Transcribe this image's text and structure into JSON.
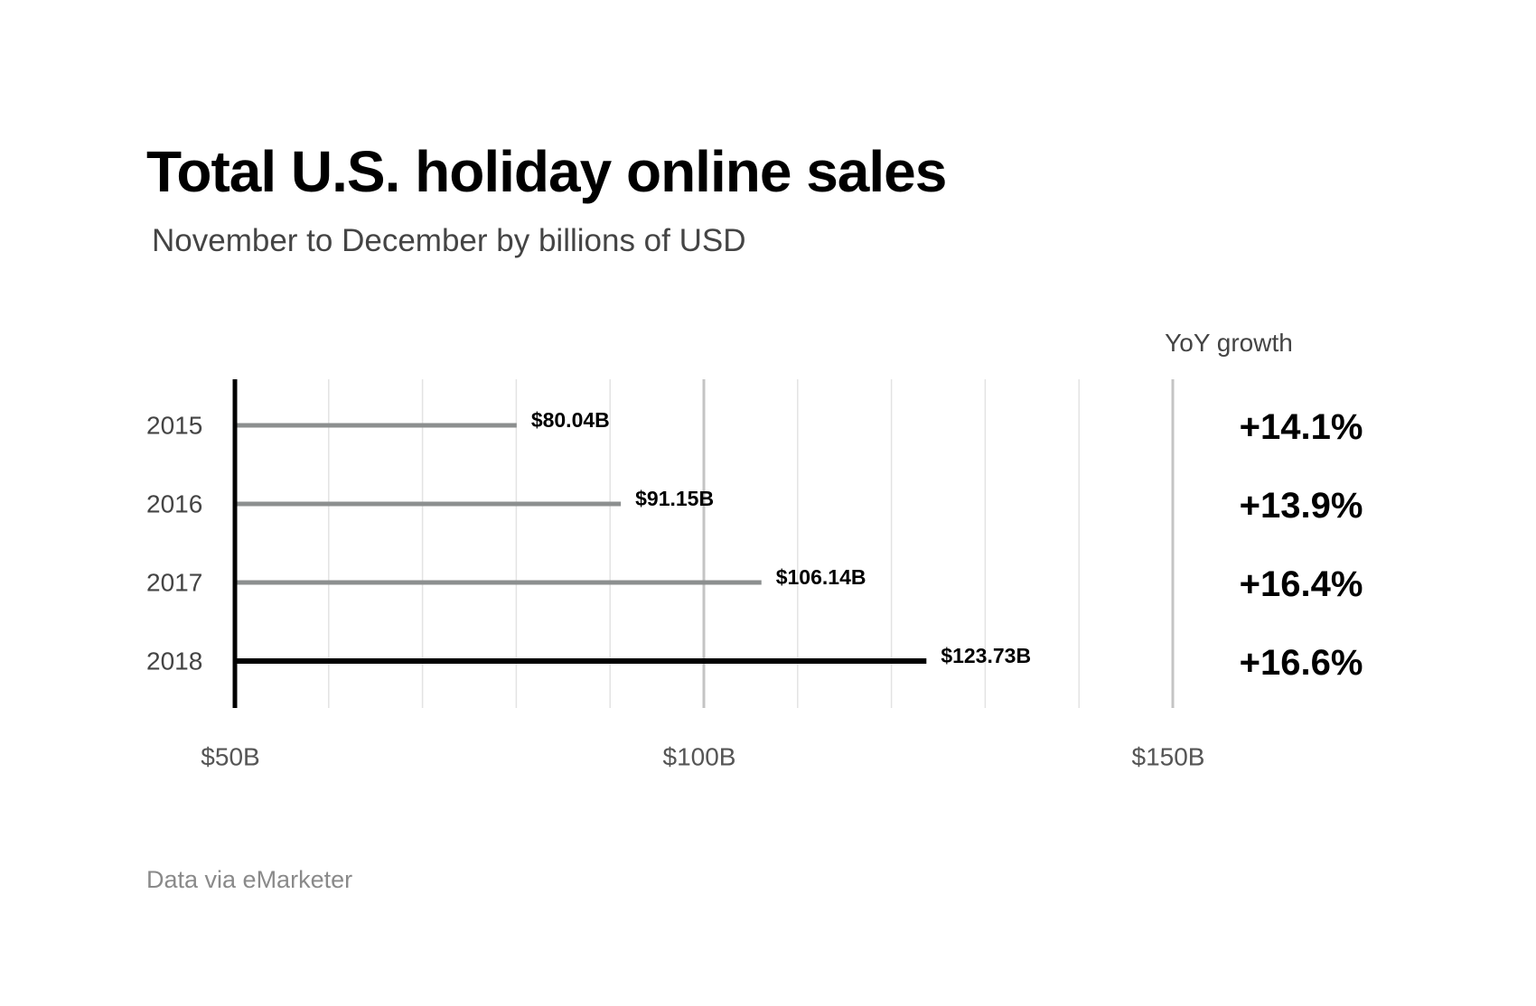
{
  "chart_data": {
    "type": "bar",
    "orientation": "horizontal",
    "title": "Total U.S. holiday online sales",
    "subtitle": "November to December by billions of USD",
    "categories": [
      "2015",
      "2016",
      "2017",
      "2018"
    ],
    "values": [
      80.04,
      91.15,
      106.14,
      123.73
    ],
    "value_labels": [
      "$80.04B",
      "$91.15B",
      "$106.14B",
      "$123.73B"
    ],
    "xlim": [
      50,
      150
    ],
    "x_ticks": [
      50,
      100,
      150
    ],
    "x_tick_labels": [
      "$50B",
      "$100B",
      "$150B"
    ],
    "minor_gridline_step": 10,
    "grid": true,
    "yoy_header": "YoY growth",
    "yoy_growth": [
      "+14.1%",
      "+13.9%",
      "+16.4%",
      "+16.6%"
    ],
    "highlight_index": 3,
    "source": "Data via eMarketer",
    "colors": {
      "bar": "#8c8f8f",
      "highlight_bar": "#000000",
      "axis": "#000000",
      "major_grid": "#c4c4c4",
      "minor_grid": "#e3e3e3"
    }
  }
}
